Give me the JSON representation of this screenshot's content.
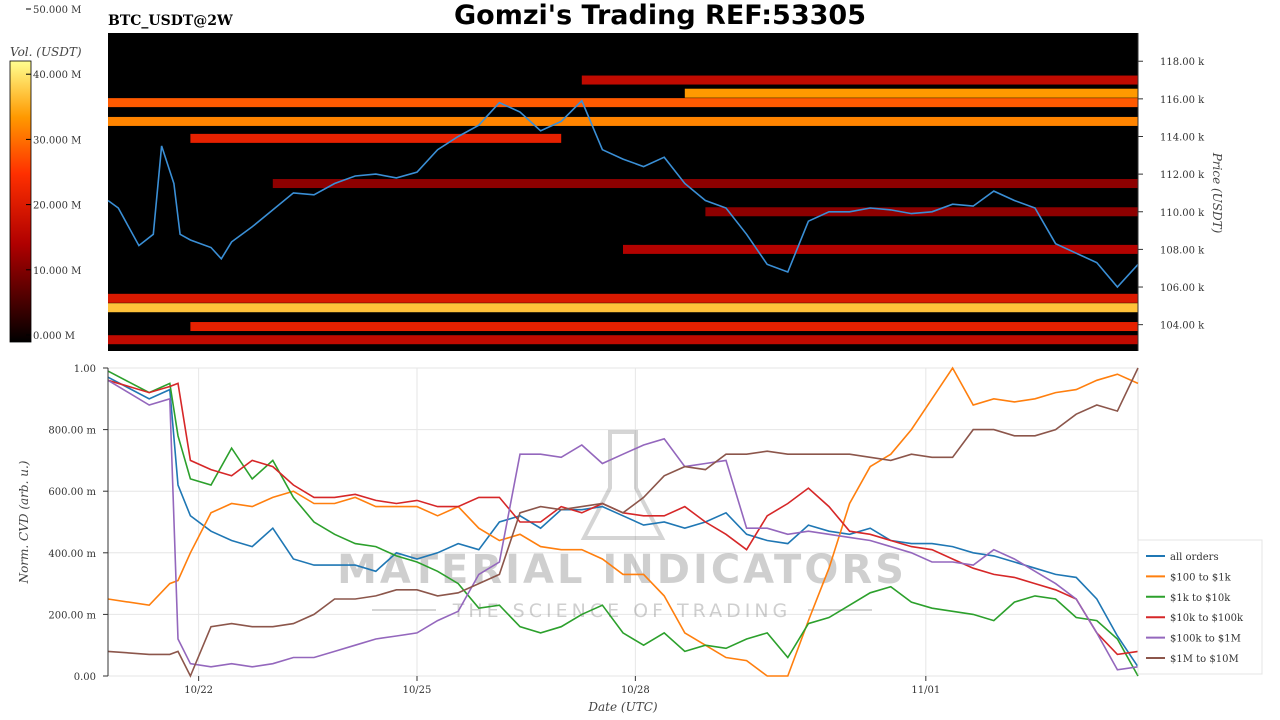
{
  "header": {
    "title": "Gomzi's Trading REF:53305",
    "pair": "BTC_USDT@2W"
  },
  "watermark": {
    "line1": "MATERIAL INDICATORS",
    "line2": "THE SCIENCE OF TRADING"
  },
  "colors": {
    "all_orders": "#1f77b4",
    "s100_1k": "#ff7f0e",
    "s1k_10k": "#2ca02c",
    "s10k_100k": "#d62728",
    "s100k_1m": "#9467bd",
    "s1m_10m": "#8c564b",
    "price_line": "#3a8fd6",
    "heatmap_bg": "#000000"
  },
  "chart_data": [
    {
      "type": "heatmap",
      "colorbar": {
        "label": "Vol. (USDT)",
        "ticks": [
          "0.000 M",
          "10.000 M",
          "20.000 M",
          "30.000 M",
          "40.000 M",
          "50.000 M"
        ],
        "range": [
          0,
          50
        ]
      },
      "ylabel": "Price (USDT)",
      "yticks": [
        "104.00 k",
        "106.00 k",
        "108.00 k",
        "110.00 k",
        "112.00 k",
        "114.00 k",
        "116.00 k",
        "118.00 k"
      ],
      "ylim": [
        102.6,
        119.5
      ],
      "price_series": {
        "t": [
          0,
          0.5,
          1.5,
          2.2,
          2.6,
          3.2,
          3.5,
          4,
          5,
          5.5,
          6,
          7,
          8,
          9,
          10,
          11,
          12,
          13,
          14,
          15,
          16,
          17,
          18,
          19,
          20,
          21,
          22,
          23,
          24,
          25,
          26,
          27,
          28,
          29,
          30,
          31,
          32,
          33,
          34,
          35,
          36,
          37,
          38,
          39,
          40,
          41,
          42,
          43,
          44,
          45,
          46,
          47,
          48,
          49,
          50
        ],
        "price": [
          110.6,
          110.2,
          108.2,
          108.8,
          113.5,
          111.5,
          108.8,
          108.5,
          108.1,
          107.5,
          108.4,
          109.2,
          110.1,
          111.0,
          110.9,
          111.5,
          111.9,
          112.0,
          111.8,
          112.1,
          113.3,
          114.0,
          114.6,
          115.8,
          115.3,
          114.3,
          114.8,
          115.9,
          113.3,
          112.8,
          112.4,
          112.9,
          111.5,
          110.6,
          110.2,
          108.8,
          107.2,
          106.8,
          109.5,
          110.0,
          110.0,
          110.2,
          110.1,
          109.9,
          110.0,
          110.4,
          110.3,
          111.1,
          110.6,
          110.2,
          108.3,
          107.8,
          107.3,
          106.0,
          107.2
        ]
      },
      "bands": [
        {
          "price": 117.0,
          "start": 23,
          "end": 50,
          "level": 20
        },
        {
          "price": 116.3,
          "start": 28,
          "end": 50,
          "level": 40
        },
        {
          "price": 115.8,
          "start": 0,
          "end": 50,
          "level": 34
        },
        {
          "price": 114.8,
          "start": 0,
          "end": 50,
          "level": 38
        },
        {
          "price": 113.9,
          "start": 4,
          "end": 22,
          "level": 26
        },
        {
          "price": 111.5,
          "start": 8,
          "end": 50,
          "level": 14
        },
        {
          "price": 110.0,
          "start": 29,
          "end": 50,
          "level": 14
        },
        {
          "price": 108.0,
          "start": 25,
          "end": 50,
          "level": 18
        },
        {
          "price": 105.4,
          "start": 0,
          "end": 50,
          "level": 24
        },
        {
          "price": 104.9,
          "start": 0,
          "end": 50,
          "level": 44
        },
        {
          "price": 103.9,
          "start": 4,
          "end": 50,
          "level": 26
        },
        {
          "price": 103.2,
          "start": 0,
          "end": 50,
          "level": 20
        }
      ]
    },
    {
      "type": "line",
      "xlabel": "Date (UTC)",
      "ylabel": "Norm. CVD (arb. u.)",
      "xticks": [
        "10/22",
        "10/25",
        "10/28",
        "11/01"
      ],
      "yticks": [
        "0.00",
        "200.00 m",
        "400.00 m",
        "600.00 m",
        "800.00 m",
        "1.00"
      ],
      "ylim": [
        0,
        1
      ],
      "legend": "right",
      "x": [
        0,
        2,
        3,
        3.4,
        4,
        5,
        6,
        7,
        8,
        9,
        10,
        11,
        12,
        13,
        14,
        15,
        16,
        17,
        18,
        19,
        20,
        21,
        22,
        23,
        24,
        25,
        26,
        27,
        28,
        29,
        30,
        31,
        32,
        33,
        34,
        35,
        36,
        37,
        38,
        39,
        40,
        41,
        42,
        43,
        44,
        45,
        46,
        47,
        48,
        49,
        50
      ],
      "series": [
        {
          "name": "all orders",
          "values": [
            0.97,
            0.9,
            0.93,
            0.62,
            0.52,
            0.47,
            0.44,
            0.42,
            0.48,
            0.38,
            0.36,
            0.36,
            0.36,
            0.34,
            0.4,
            0.38,
            0.4,
            0.43,
            0.41,
            0.5,
            0.52,
            0.48,
            0.54,
            0.54,
            0.55,
            0.52,
            0.49,
            0.5,
            0.48,
            0.5,
            0.53,
            0.46,
            0.44,
            0.43,
            0.49,
            0.47,
            0.46,
            0.48,
            0.44,
            0.43,
            0.43,
            0.42,
            0.4,
            0.39,
            0.37,
            0.35,
            0.33,
            0.32,
            0.25,
            0.13,
            0.03
          ]
        },
        {
          "name": "$100 to $1k",
          "values": [
            0.25,
            0.23,
            0.3,
            0.31,
            0.4,
            0.53,
            0.56,
            0.55,
            0.58,
            0.6,
            0.56,
            0.56,
            0.58,
            0.55,
            0.55,
            0.55,
            0.52,
            0.55,
            0.48,
            0.44,
            0.46,
            0.42,
            0.41,
            0.41,
            0.38,
            0.33,
            0.33,
            0.26,
            0.14,
            0.1,
            0.06,
            0.05,
            0.0,
            0.0,
            0.18,
            0.35,
            0.56,
            0.68,
            0.72,
            0.8,
            0.9,
            1.0,
            0.88,
            0.9,
            0.89,
            0.9,
            0.92,
            0.93,
            0.96,
            0.98,
            0.95
          ]
        },
        {
          "name": "$1k to $10k",
          "values": [
            0.99,
            0.92,
            0.95,
            0.78,
            0.64,
            0.62,
            0.74,
            0.64,
            0.7,
            0.58,
            0.5,
            0.46,
            0.43,
            0.42,
            0.39,
            0.37,
            0.34,
            0.3,
            0.22,
            0.23,
            0.16,
            0.14,
            0.16,
            0.2,
            0.23,
            0.14,
            0.1,
            0.14,
            0.08,
            0.1,
            0.09,
            0.12,
            0.14,
            0.06,
            0.17,
            0.19,
            0.23,
            0.27,
            0.29,
            0.24,
            0.22,
            0.21,
            0.2,
            0.18,
            0.24,
            0.26,
            0.25,
            0.19,
            0.18,
            0.12,
            0.0
          ]
        },
        {
          "name": "$10k to $100k",
          "values": [
            0.96,
            0.92,
            0.94,
            0.95,
            0.7,
            0.67,
            0.65,
            0.7,
            0.68,
            0.62,
            0.58,
            0.58,
            0.59,
            0.57,
            0.56,
            0.57,
            0.55,
            0.55,
            0.58,
            0.58,
            0.5,
            0.5,
            0.55,
            0.53,
            0.56,
            0.53,
            0.52,
            0.52,
            0.55,
            0.5,
            0.46,
            0.41,
            0.52,
            0.56,
            0.61,
            0.55,
            0.47,
            0.46,
            0.44,
            0.42,
            0.41,
            0.38,
            0.35,
            0.33,
            0.32,
            0.3,
            0.28,
            0.25,
            0.14,
            0.07,
            0.08
          ]
        },
        {
          "name": "$100k to $1M",
          "values": [
            0.96,
            0.88,
            0.9,
            0.12,
            0.04,
            0.03,
            0.04,
            0.03,
            0.04,
            0.06,
            0.06,
            0.08,
            0.1,
            0.12,
            0.13,
            0.14,
            0.18,
            0.21,
            0.33,
            0.37,
            0.72,
            0.72,
            0.71,
            0.75,
            0.69,
            0.72,
            0.75,
            0.77,
            0.68,
            0.69,
            0.7,
            0.48,
            0.48,
            0.46,
            0.47,
            0.46,
            0.45,
            0.44,
            0.42,
            0.4,
            0.37,
            0.37,
            0.36,
            0.41,
            0.38,
            0.34,
            0.3,
            0.25,
            0.14,
            0.02,
            0.03
          ]
        },
        {
          "name": "$1M to $10M",
          "values": [
            0.08,
            0.07,
            0.07,
            0.08,
            0.0,
            0.16,
            0.17,
            0.16,
            0.16,
            0.17,
            0.2,
            0.25,
            0.25,
            0.26,
            0.28,
            0.28,
            0.26,
            0.27,
            0.3,
            0.33,
            0.53,
            0.55,
            0.54,
            0.55,
            0.56,
            0.53,
            0.58,
            0.65,
            0.68,
            0.67,
            0.72,
            0.72,
            0.73,
            0.72,
            0.72,
            0.72,
            0.72,
            0.71,
            0.7,
            0.72,
            0.71,
            0.71,
            0.8,
            0.8,
            0.78,
            0.78,
            0.8,
            0.85,
            0.88,
            0.86,
            1.0
          ]
        }
      ]
    }
  ]
}
